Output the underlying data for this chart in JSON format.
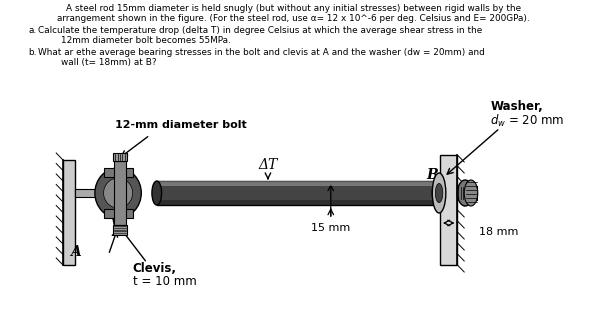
{
  "title_line1": "A steel rod 15mm diameter is held snugly (but without any initial stresses) between rigid walls by the",
  "title_line2": "arrangement shown in the figure. (For the steel rod, use α= 12 x 10^-6 per deg. Celsius and E= 200GPa).",
  "qa_label": "a.",
  "qa_text": "Calculate the temperature drop (delta T) in degree Celsius at which the average shear stress in the\n        12mm diameter bolt becomes 55MPa.",
  "qb_label": "b.",
  "qb_text": "What ar ethe average bearing stresses in the bolt and clevis at A and the washer (dw = 20mm) and\n        wall (t= 18mm) at B?",
  "label_bolt": "12-mm diameter bolt",
  "label_delta_T": "ΔT",
  "label_B": "B",
  "label_A": "A",
  "label_15mm": "15 mm",
  "label_18mm": "18 mm",
  "label_washer_line1": "Washer,",
  "label_washer_line2": "$d_w$ = 20 mm",
  "label_clevis_line1": "Clevis,",
  "label_clevis_line2": "t = 10 mm",
  "bg_color": "#ffffff"
}
